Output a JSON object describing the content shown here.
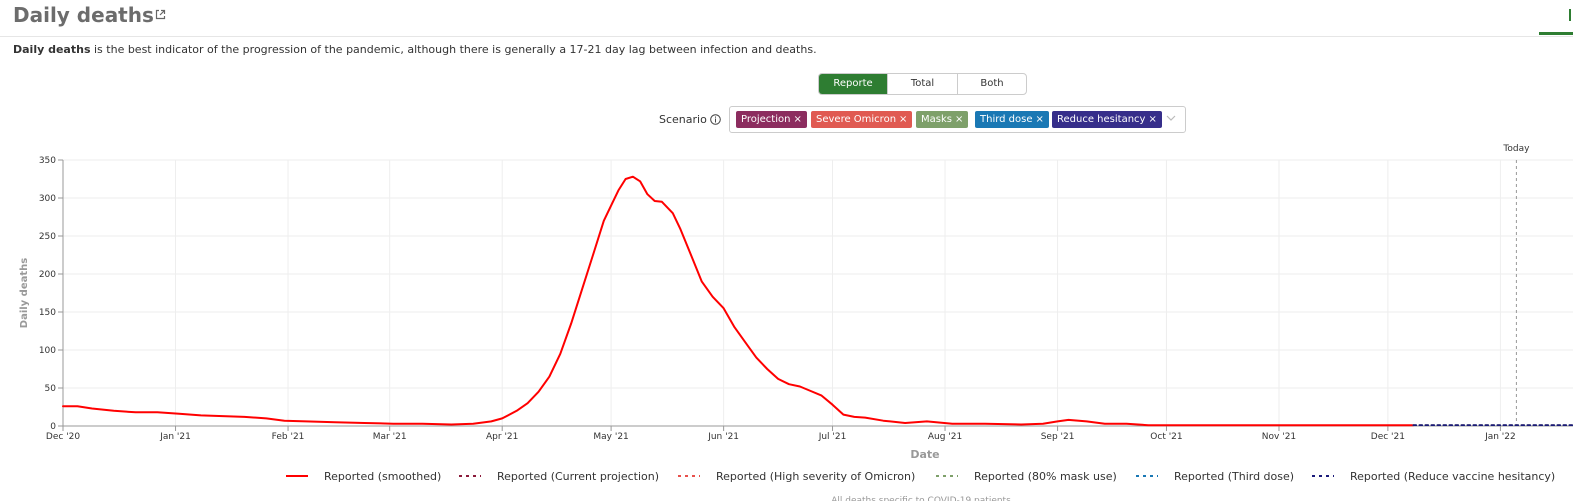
{
  "header": {
    "title": "Daily deaths"
  },
  "description": {
    "bold": "Daily deaths",
    "rest": " is the best indicator of the progression of the pandemic, although there is generally a 17-21 day lag between infection and deaths."
  },
  "toggle": {
    "options": [
      "Reporte",
      "Total",
      "Both"
    ],
    "active": "Reporte"
  },
  "scenario": {
    "label": "Scenario",
    "chips": [
      {
        "label": "Projection",
        "color": "#8c2d5f"
      },
      {
        "label": "Severe Omicron",
        "color": "#e05a52"
      },
      {
        "label": "Masks",
        "color": "#7ea06a"
      },
      {
        "label": "Third dose",
        "color": "#1a78b4"
      },
      {
        "label": "Reduce hesitancy",
        "color": "#362e8a"
      }
    ]
  },
  "chart_data": {
    "type": "line",
    "xlabel": "Date",
    "ylabel": "Daily deaths",
    "ylim": [
      0,
      350
    ],
    "yticks": [
      0,
      50,
      100,
      150,
      200,
      250,
      300,
      350
    ],
    "xlim": [
      "2020-12-01",
      "2022-01-21"
    ],
    "xticks": [
      {
        "date": "2020-12-01",
        "label": "Dec '20"
      },
      {
        "date": "2021-01-01",
        "label": "Jan '21"
      },
      {
        "date": "2021-02-01",
        "label": "Feb '21"
      },
      {
        "date": "2021-03-01",
        "label": "Mar '21"
      },
      {
        "date": "2021-04-01",
        "label": "Apr '21"
      },
      {
        "date": "2021-05-01",
        "label": "May '21"
      },
      {
        "date": "2021-06-01",
        "label": "Jun '21"
      },
      {
        "date": "2021-07-01",
        "label": "Jul '21"
      },
      {
        "date": "2021-08-01",
        "label": "Aug '21"
      },
      {
        "date": "2021-09-01",
        "label": "Sep '21"
      },
      {
        "date": "2021-10-01",
        "label": "Oct '21"
      },
      {
        "date": "2021-11-01",
        "label": "Nov '21"
      },
      {
        "date": "2021-12-01",
        "label": "Dec '21"
      },
      {
        "date": "2022-01-01",
        "label": "Jan '22"
      }
    ],
    "grid": true,
    "legend_position": "bottom",
    "today": {
      "date": "2022-01-01",
      "label": "Today"
    },
    "series": [
      {
        "name": "Reported (smoothed)",
        "color": "#ff0000",
        "style": "solid",
        "points": [
          [
            "2020-12-01",
            26
          ],
          [
            "2020-12-05",
            26
          ],
          [
            "2020-12-09",
            23
          ],
          [
            "2020-12-15",
            20
          ],
          [
            "2020-12-21",
            18
          ],
          [
            "2020-12-27",
            18
          ],
          [
            "2021-01-02",
            16
          ],
          [
            "2021-01-08",
            14
          ],
          [
            "2021-01-14",
            13
          ],
          [
            "2021-01-20",
            12
          ],
          [
            "2021-01-26",
            10
          ],
          [
            "2021-01-31",
            7
          ],
          [
            "2021-02-06",
            6
          ],
          [
            "2021-02-14",
            5
          ],
          [
            "2021-02-22",
            4
          ],
          [
            "2021-03-02",
            3
          ],
          [
            "2021-03-10",
            3
          ],
          [
            "2021-03-18",
            2
          ],
          [
            "2021-03-24",
            3
          ],
          [
            "2021-03-29",
            6
          ],
          [
            "2021-04-01",
            10
          ],
          [
            "2021-04-05",
            20
          ],
          [
            "2021-04-08",
            30
          ],
          [
            "2021-04-11",
            45
          ],
          [
            "2021-04-14",
            65
          ],
          [
            "2021-04-17",
            95
          ],
          [
            "2021-04-20",
            135
          ],
          [
            "2021-04-23",
            180
          ],
          [
            "2021-04-26",
            225
          ],
          [
            "2021-04-29",
            270
          ],
          [
            "2021-05-01",
            290
          ],
          [
            "2021-05-03",
            310
          ],
          [
            "2021-05-05",
            325
          ],
          [
            "2021-05-07",
            328
          ],
          [
            "2021-05-09",
            322
          ],
          [
            "2021-05-11",
            305
          ],
          [
            "2021-05-13",
            296
          ],
          [
            "2021-05-15",
            295
          ],
          [
            "2021-05-18",
            280
          ],
          [
            "2021-05-20",
            260
          ],
          [
            "2021-05-23",
            225
          ],
          [
            "2021-05-26",
            190
          ],
          [
            "2021-05-29",
            170
          ],
          [
            "2021-06-01",
            155
          ],
          [
            "2021-06-04",
            130
          ],
          [
            "2021-06-07",
            110
          ],
          [
            "2021-06-10",
            90
          ],
          [
            "2021-06-13",
            75
          ],
          [
            "2021-06-16",
            62
          ],
          [
            "2021-06-19",
            55
          ],
          [
            "2021-06-22",
            52
          ],
          [
            "2021-06-25",
            46
          ],
          [
            "2021-06-28",
            40
          ],
          [
            "2021-07-01",
            28
          ],
          [
            "2021-07-04",
            15
          ],
          [
            "2021-07-07",
            12
          ],
          [
            "2021-07-10",
            11
          ],
          [
            "2021-07-15",
            7
          ],
          [
            "2021-07-21",
            4
          ],
          [
            "2021-07-27",
            6
          ],
          [
            "2021-08-03",
            3
          ],
          [
            "2021-08-12",
            3
          ],
          [
            "2021-08-22",
            2
          ],
          [
            "2021-08-28",
            3
          ],
          [
            "2021-09-01",
            6
          ],
          [
            "2021-09-04",
            8
          ],
          [
            "2021-09-09",
            6
          ],
          [
            "2021-09-14",
            3
          ],
          [
            "2021-09-20",
            3
          ],
          [
            "2021-09-26",
            1
          ],
          [
            "2021-10-15",
            1
          ],
          [
            "2021-11-15",
            1
          ],
          [
            "2021-12-08",
            1
          ]
        ]
      },
      {
        "name": "Reported (Current projection)",
        "color": "#8b1a3a",
        "style": "dashed",
        "points": [
          [
            "2021-12-08",
            1
          ],
          [
            "2022-01-21",
            1
          ]
        ]
      },
      {
        "name": "Reported (High severity of Omicron)",
        "color": "#e8514c",
        "style": "dashed",
        "points": [
          [
            "2021-12-08",
            1
          ],
          [
            "2022-01-21",
            1
          ]
        ]
      },
      {
        "name": "Reported (80% mask use)",
        "color": "#7ea06a",
        "style": "dashed",
        "points": [
          [
            "2021-12-08",
            1
          ],
          [
            "2022-01-21",
            1
          ]
        ]
      },
      {
        "name": "Reported (Third dose)",
        "color": "#1a78b4",
        "style": "dashed",
        "points": [
          [
            "2021-12-08",
            1
          ],
          [
            "2022-01-21",
            1
          ]
        ]
      },
      {
        "name": "Reported (Reduce vaccine hesitancy)",
        "color": "#1a1a7a",
        "style": "dashed",
        "points": [
          [
            "2021-12-08",
            1
          ],
          [
            "2022-01-21",
            1
          ]
        ]
      }
    ]
  },
  "footnote": "All deaths specific to COVID-19 patients"
}
